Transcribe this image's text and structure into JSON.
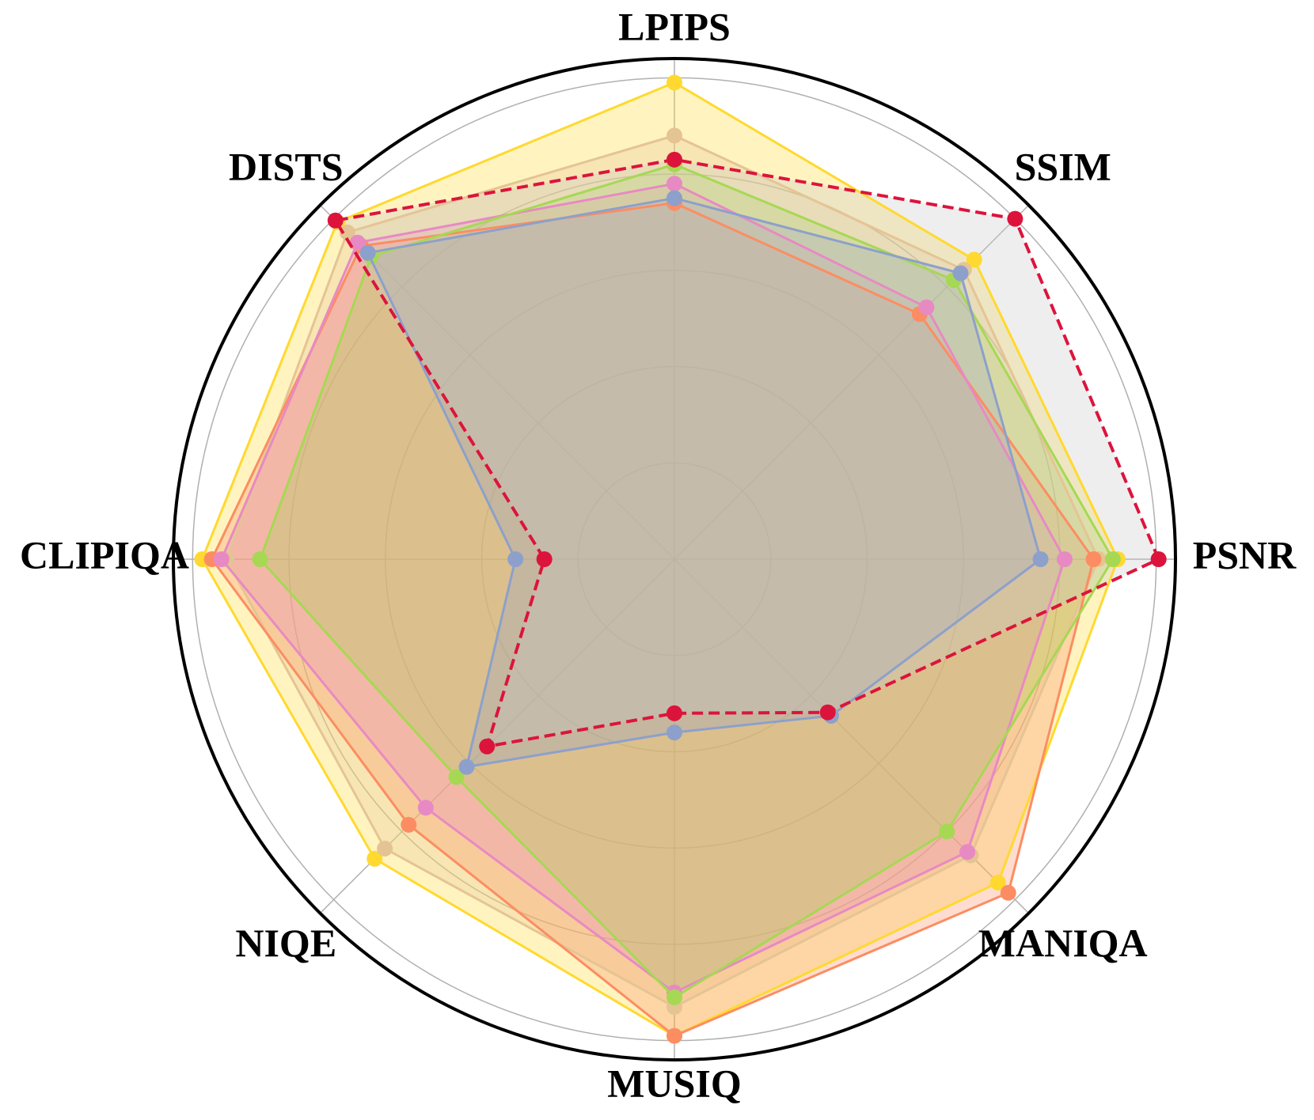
{
  "chart_data": {
    "type": "radar",
    "categories": [
      "PSNR",
      "SSIM",
      "LPIPS",
      "DISTS",
      "CLIPIQA",
      "NIQE",
      "MUSIQ",
      "MANIQA"
    ],
    "ylim": [
      0,
      1.04
    ],
    "yticks": [
      0.2,
      0.4,
      0.6,
      0.8,
      1.0
    ],
    "grid": true,
    "series": [
      {
        "color": "#ffd92f",
        "fill": "#ffd92f",
        "values": [
          0.92,
          0.88,
          0.99,
          0.99,
          0.98,
          0.88,
          0.99,
          0.95
        ]
      },
      {
        "color": "#e5c494",
        "fill": "#e5c494",
        "values": [
          0.88,
          0.85,
          0.88,
          0.96,
          0.93,
          0.85,
          0.93,
          0.87
        ]
      },
      {
        "color": "#fc8d62",
        "fill": "#fc8d62",
        "values": [
          0.87,
          0.72,
          0.74,
          0.92,
          0.96,
          0.78,
          0.99,
          0.98
        ]
      },
      {
        "color": "#e78ac3",
        "fill": "#e78ac3",
        "values": [
          0.81,
          0.74,
          0.78,
          0.93,
          0.94,
          0.73,
          0.9,
          0.86
        ]
      },
      {
        "color": "#a6d854",
        "fill": "#a6d854",
        "values": [
          0.91,
          0.82,
          0.82,
          0.89,
          0.86,
          0.64,
          0.91,
          0.8
        ]
      },
      {
        "color": "#8da0cb",
        "fill": "#8da0cb",
        "values": [
          0.76,
          0.84,
          0.75,
          0.9,
          0.33,
          0.61,
          0.36,
          0.46
        ]
      },
      {
        "color": "#dc143c",
        "fill": "#c8c8c8",
        "line_style": "dashed",
        "values": [
          1.005,
          1.0,
          0.83,
          0.995,
          0.27,
          0.55,
          0.32,
          0.45
        ]
      }
    ]
  }
}
